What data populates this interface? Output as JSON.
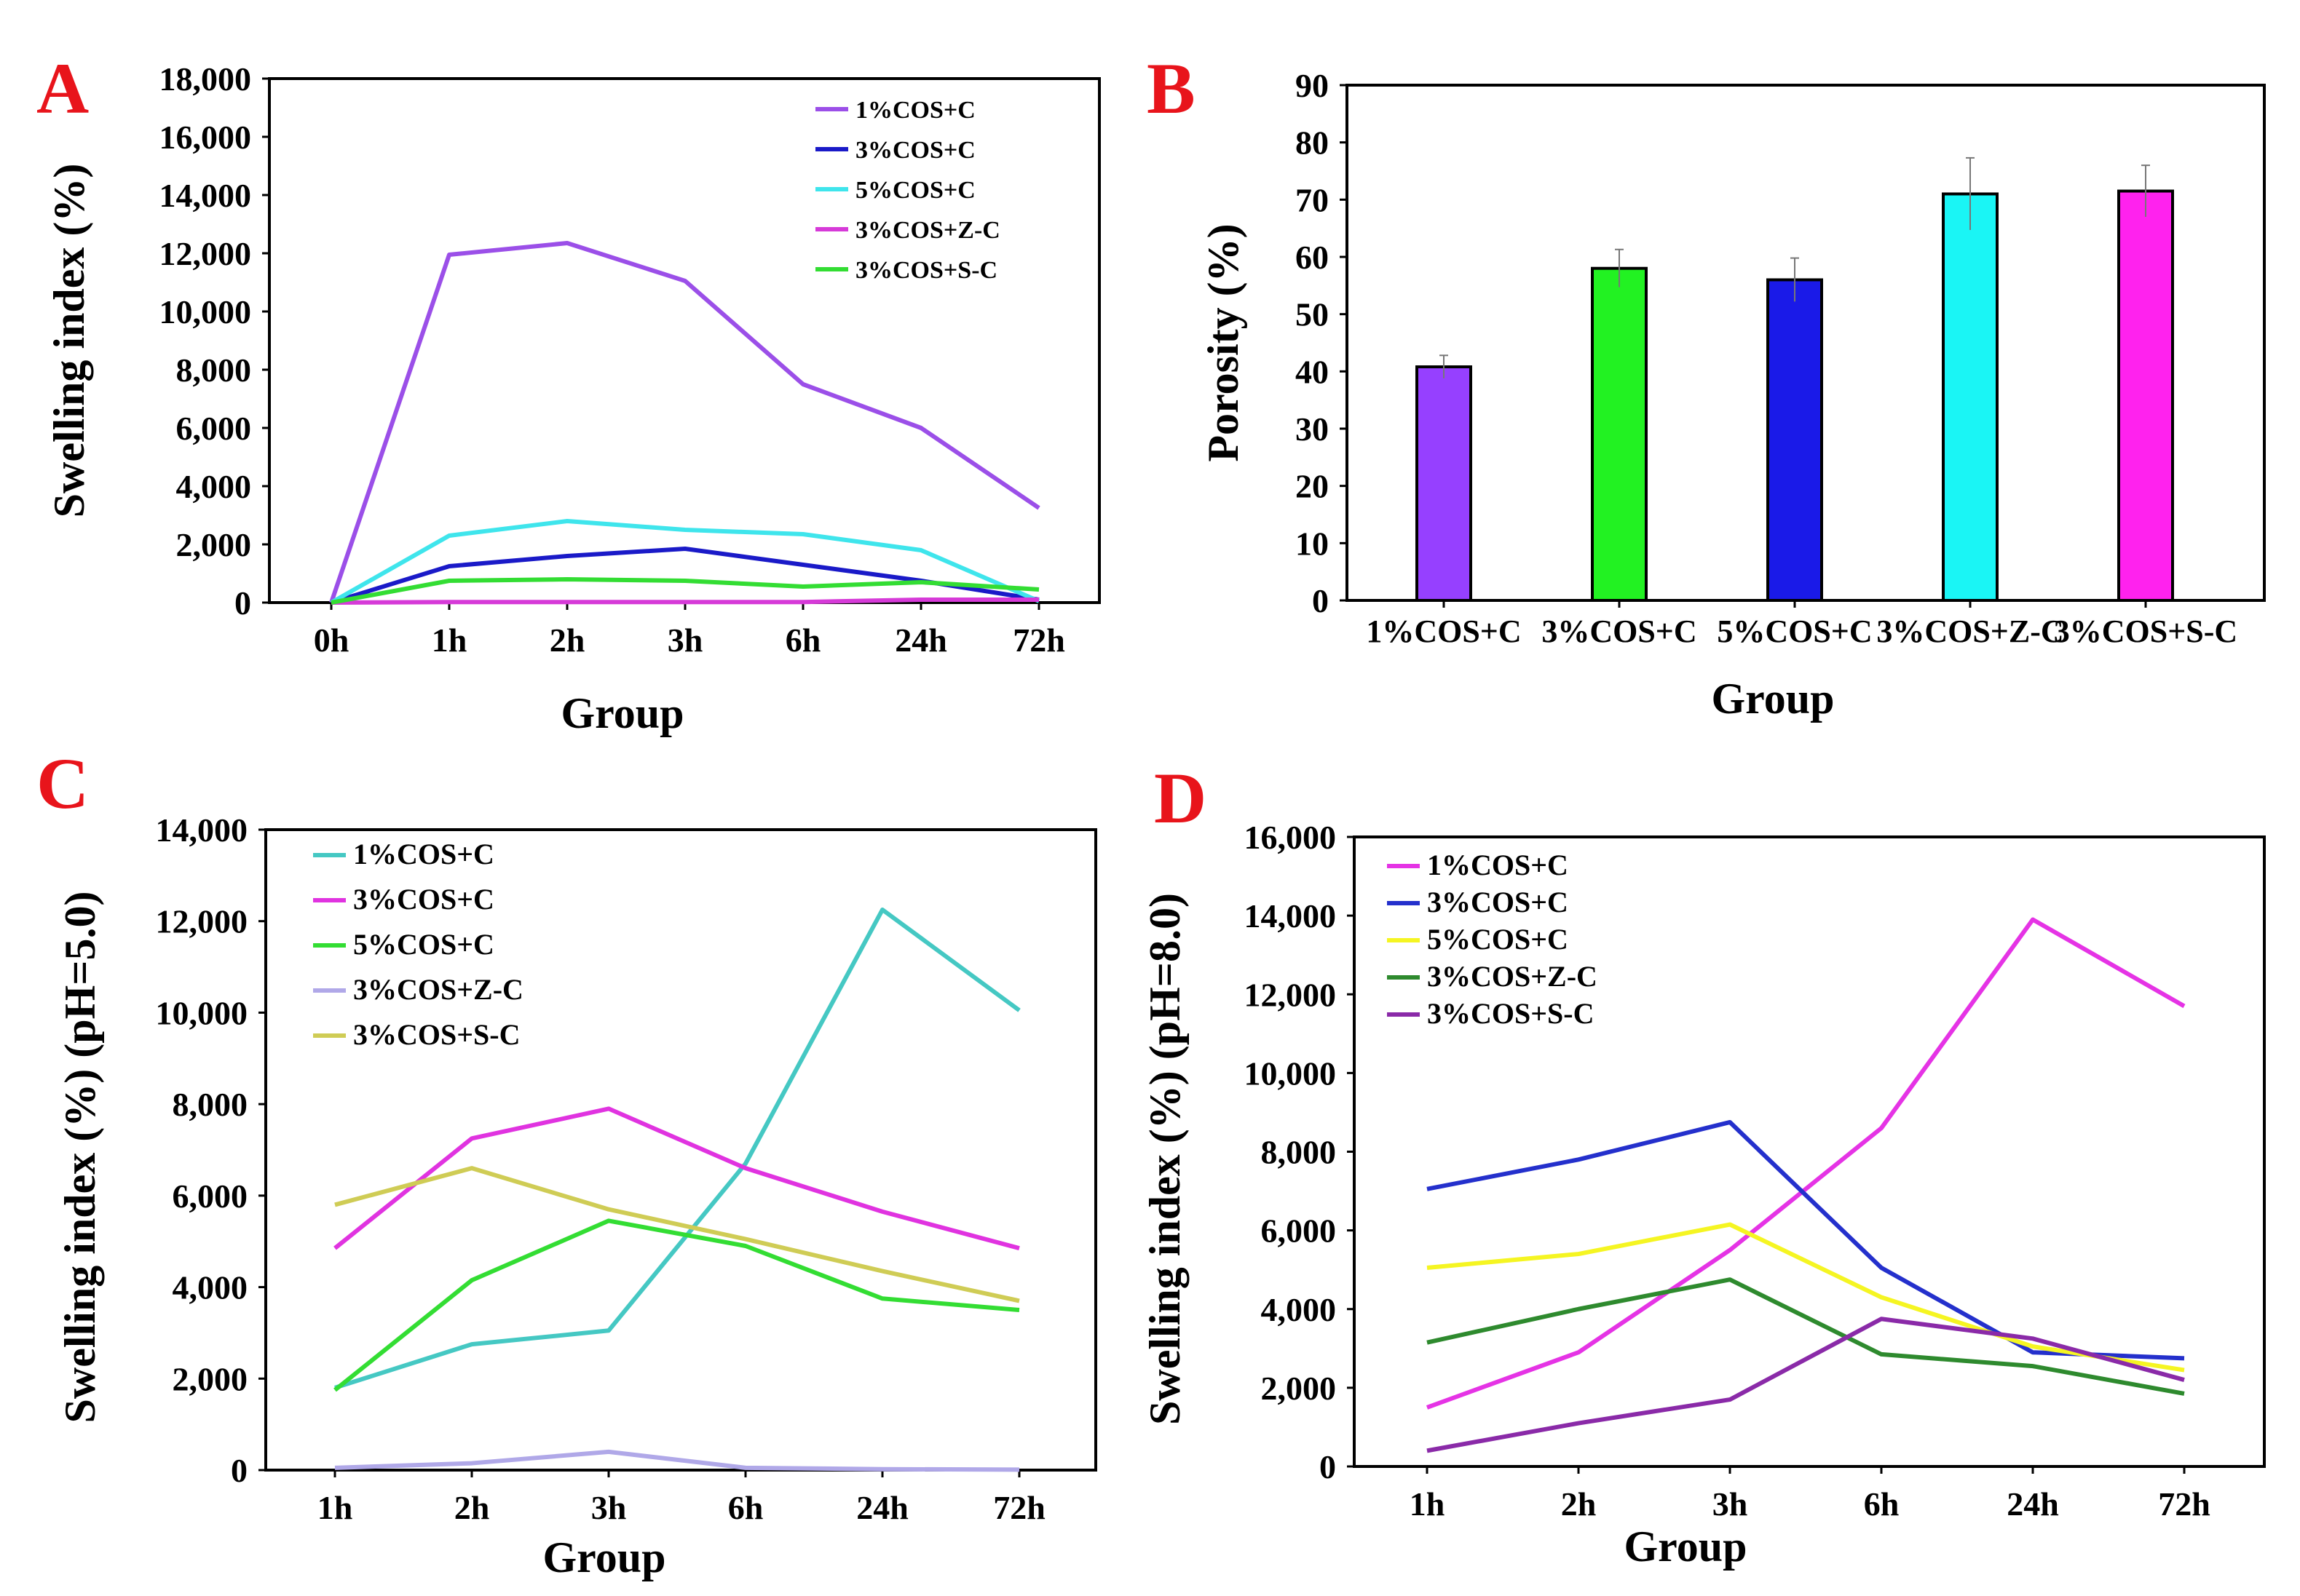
{
  "chart_data": [
    {
      "panel": "A",
      "type": "line",
      "xlabel": "Group",
      "ylabel": "Swelling index (%)",
      "categories": [
        "0h",
        "1h",
        "2h",
        "3h",
        "6h",
        "24h",
        "72h"
      ],
      "yticks": [
        "0",
        "2,000",
        "4,000",
        "6,000",
        "8,000",
        "10,000",
        "12,000",
        "14,000",
        "16,000",
        "18,000"
      ],
      "ylim": [
        0,
        18000
      ],
      "legend_position": "top-right",
      "series": [
        {
          "name": "1%COS+C",
          "color": "#9b4fe8",
          "values": [
            0,
            11950,
            12350,
            11050,
            7500,
            6000,
            3250
          ]
        },
        {
          "name": "3%COS+C",
          "color": "#1a1ac8",
          "values": [
            0,
            1250,
            1600,
            1850,
            1300,
            750,
            100
          ]
        },
        {
          "name": "5%COS+C",
          "color": "#3fe5ec",
          "values": [
            0,
            2300,
            2800,
            2500,
            2350,
            1800,
            50
          ]
        },
        {
          "name": "3%COS+Z-C",
          "color": "#d63ad8",
          "values": [
            0,
            20,
            20,
            20,
            20,
            100,
            100
          ]
        },
        {
          "name": "3%COS+S-C",
          "color": "#33dd33",
          "values": [
            0,
            750,
            800,
            750,
            550,
            700,
            450
          ]
        }
      ]
    },
    {
      "panel": "B",
      "type": "bar",
      "xlabel": "Group",
      "ylabel": "Porosity (%)",
      "categories": [
        "1%COS+C",
        "3%COS+C",
        "5%COS+C",
        "3%COS+Z-C",
        "3%COS+S-C"
      ],
      "yticks": [
        "0",
        "10",
        "20",
        "30",
        "40",
        "50",
        "60",
        "70",
        "80",
        "90"
      ],
      "ylim": [
        0,
        90
      ],
      "values": [
        40.8,
        58.0,
        56.0,
        71.0,
        71.5
      ],
      "errors": [
        2.0,
        3.3,
        3.8,
        6.3,
        4.5
      ],
      "colors": [
        "#9640ff",
        "#22f222",
        "#1a1ae8",
        "#1af5f5",
        "#ff22ee"
      ]
    },
    {
      "panel": "C",
      "type": "line",
      "xlabel": "Group",
      "ylabel": "Swelling index (%) (pH=5.0)",
      "categories": [
        "1h",
        "2h",
        "3h",
        "6h",
        "24h",
        "72h"
      ],
      "yticks": [
        "0",
        "2,000",
        "4,000",
        "6,000",
        "8,000",
        "10,000",
        "12,000",
        "14,000"
      ],
      "ylim": [
        0,
        14000
      ],
      "legend_position": "top-left",
      "series": [
        {
          "name": "1%COS+C",
          "color": "#45c8c3",
          "values": [
            1800,
            2750,
            3050,
            6700,
            12250,
            10050
          ]
        },
        {
          "name": "3%COS+C",
          "color": "#e033e0",
          "values": [
            4850,
            7250,
            7900,
            6600,
            5650,
            4850
          ]
        },
        {
          "name": "5%COS+C",
          "color": "#33dd33",
          "values": [
            1750,
            4150,
            5450,
            4900,
            3750,
            3500
          ]
        },
        {
          "name": "3%COS+Z-C",
          "color": "#b0a8e8",
          "values": [
            50,
            150,
            400,
            50,
            20,
            10
          ]
        },
        {
          "name": "3%COS+S-C",
          "color": "#cfcc55",
          "values": [
            5800,
            6600,
            5700,
            5050,
            4350,
            3700
          ]
        }
      ]
    },
    {
      "panel": "D",
      "type": "line",
      "xlabel": "Group",
      "ylabel": "Swelling index (%) (pH=8.0)",
      "categories": [
        "1h",
        "2h",
        "3h",
        "6h",
        "24h",
        "72h"
      ],
      "yticks": [
        "0",
        "2,000",
        "4,000",
        "6,000",
        "8,000",
        "10,000",
        "12,000",
        "14,000",
        "16,000"
      ],
      "ylim": [
        0,
        16000
      ],
      "legend_position": "top-left",
      "series": [
        {
          "name": "1%COS+C",
          "color": "#e533e5",
          "values": [
            1500,
            2900,
            5500,
            8600,
            13900,
            11700
          ]
        },
        {
          "name": "3%COS+C",
          "color": "#2430cc",
          "values": [
            7050,
            7800,
            8750,
            5050,
            2900,
            2750
          ]
        },
        {
          "name": "5%COS+C",
          "color": "#f5f522",
          "values": [
            5050,
            5400,
            6150,
            4300,
            3050,
            2450
          ]
        },
        {
          "name": "3%COS+Z-C",
          "color": "#2e8a2e",
          "values": [
            3150,
            4000,
            4750,
            2850,
            2550,
            1850
          ]
        },
        {
          "name": "3%COS+S-C",
          "color": "#8a2aa8",
          "values": [
            400,
            1100,
            1700,
            3750,
            3250,
            2200
          ]
        }
      ]
    }
  ]
}
